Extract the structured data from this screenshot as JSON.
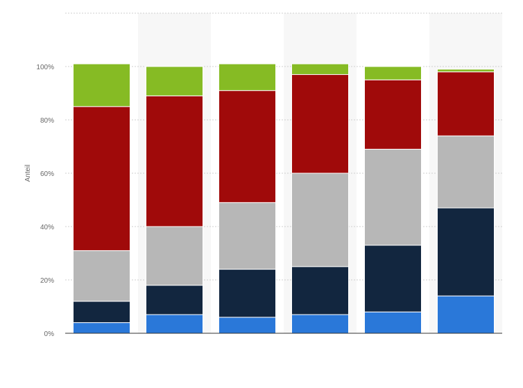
{
  "chart_data": {
    "type": "bar",
    "stacked": true,
    "title": "",
    "xlabel": "",
    "ylabel": "Anteil",
    "ylim": [
      0,
      120
    ],
    "yticks": [
      0,
      20,
      40,
      60,
      80,
      100
    ],
    "ytick_labels": [
      "0%",
      "20%",
      "40%",
      "60%",
      "80%",
      "100%"
    ],
    "categories": [
      "",
      "",
      "",
      "",
      "",
      ""
    ],
    "grid": true,
    "legend": "none",
    "series": [
      {
        "color": "#2a78d9",
        "values": [
          4,
          7,
          6,
          7,
          8,
          14
        ]
      },
      {
        "color": "#12263f",
        "values": [
          8,
          11,
          18,
          18,
          25,
          33
        ]
      },
      {
        "color": "#b7b7b7",
        "values": [
          19,
          22,
          25,
          35,
          36,
          27
        ]
      },
      {
        "color": "#a00a0a",
        "values": [
          54,
          49,
          42,
          37,
          26,
          24
        ]
      },
      {
        "color": "#86bb24",
        "values": [
          16,
          11,
          10,
          4,
          5,
          1
        ]
      }
    ]
  }
}
